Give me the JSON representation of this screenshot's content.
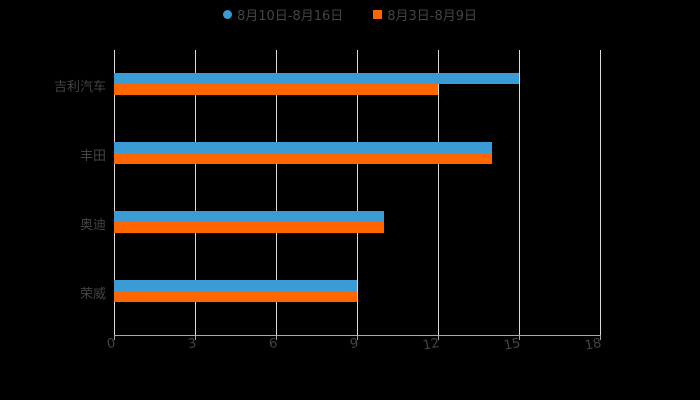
{
  "chart_data": {
    "type": "bar",
    "orientation": "horizontal",
    "title": "",
    "xlabel": "",
    "ylabel": "",
    "xlim": [
      0,
      18
    ],
    "x_ticks": [
      0,
      3,
      6,
      9,
      12,
      15,
      18
    ],
    "categories": [
      "吉利汽车",
      "丰田",
      "奥迪",
      "荣威"
    ],
    "series": [
      {
        "name": "8月10日-8月16日",
        "color": "#3a9bd5",
        "values": [
          15,
          14,
          10,
          9
        ]
      },
      {
        "name": "8月3日-8月9日",
        "color": "#ff6600",
        "values": [
          12,
          14,
          10,
          9
        ]
      }
    ],
    "legend_position": "top",
    "grid": true
  },
  "legend": {
    "series_a": "8月10日-8月16日",
    "series_b": "8月3日-8月9日"
  },
  "axis": {
    "ticks": [
      "0",
      "3",
      "6",
      "9",
      "12",
      "15",
      "18"
    ]
  },
  "categories": [
    "吉利汽车",
    "丰田",
    "奥迪",
    "荣威"
  ]
}
